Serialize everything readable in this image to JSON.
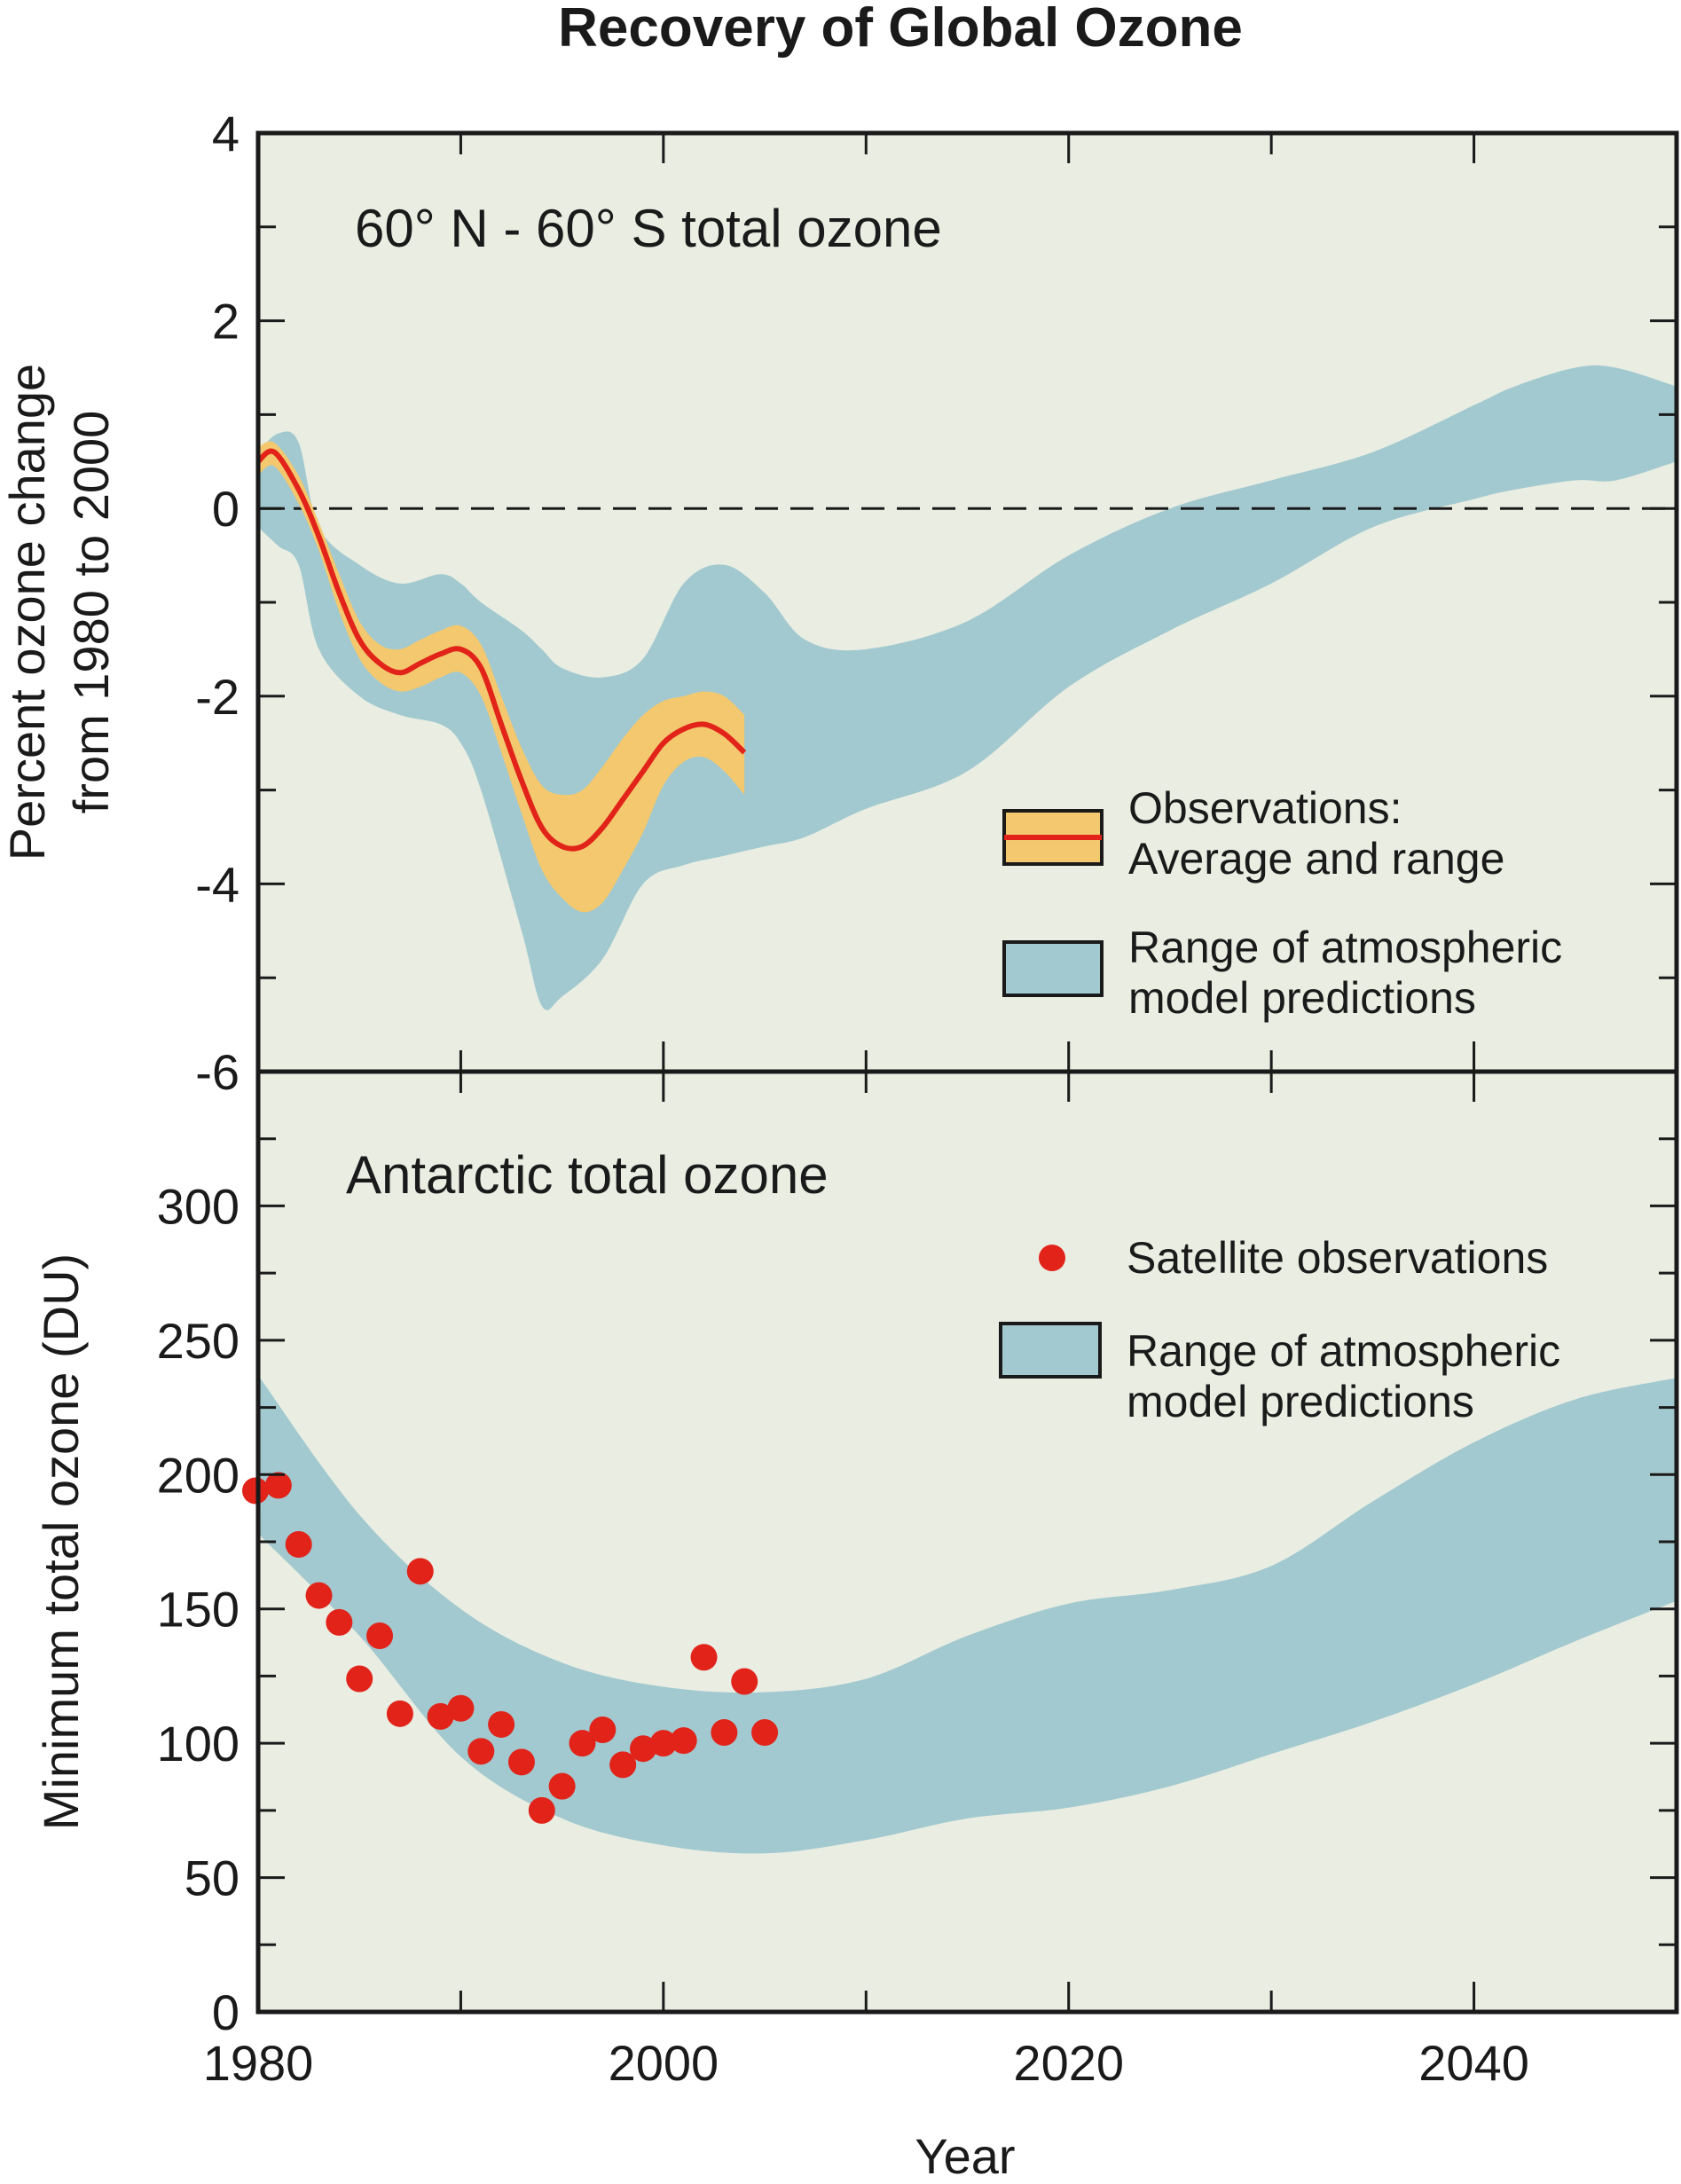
{
  "title": "Recovery of Global Ozone",
  "xlabel": "Year",
  "colors": {
    "background": "#e9ede2",
    "model_band": "#a2c9cf",
    "obs_band": "#f3c86e",
    "obs_line": "#e2231a",
    "points": "#e2231a",
    "axis": "#1a1a1a"
  },
  "chart_data": [
    {
      "type": "area",
      "panel": "top",
      "title": "60° N - 60° S total ozone",
      "xlabel": "",
      "ylabel_lines": [
        "Percent ozone change",
        "from 1980 to 2000"
      ],
      "xlim": [
        1980,
        2050
      ],
      "ylim": [
        -6,
        4
      ],
      "yticks": [
        4,
        2,
        0,
        -2,
        -4,
        -6
      ],
      "reference_line": 0,
      "legend": {
        "placement": "lower-right",
        "obs_label_lines": [
          "Observations:",
          "Average and range"
        ],
        "model_label_lines": [
          "Range of atmospheric",
          "model predictions"
        ]
      },
      "model_range": {
        "name": "Range of atmospheric model predictions",
        "x": [
          1980,
          1981,
          1982,
          1983,
          1985,
          1987,
          1989,
          1990,
          1991,
          1993,
          1994,
          1995,
          1997,
          1999,
          2001,
          2003,
          2005,
          2007,
          2010,
          2015,
          2020,
          2025,
          2030,
          2035,
          2040,
          2042,
          2045,
          2047,
          2050
        ],
        "upper": [
          0.6,
          0.8,
          0.7,
          -0.2,
          -0.6,
          -0.8,
          -0.7,
          -0.8,
          -1.0,
          -1.3,
          -1.5,
          -1.7,
          -1.8,
          -1.6,
          -0.8,
          -0.6,
          -0.9,
          -1.4,
          -1.5,
          -1.2,
          -0.5,
          0.0,
          0.3,
          0.6,
          1.1,
          1.3,
          1.5,
          1.5,
          1.3
        ],
        "lower": [
          -0.2,
          -0.4,
          -0.6,
          -1.5,
          -2.0,
          -2.2,
          -2.3,
          -2.5,
          -3.0,
          -4.5,
          -5.3,
          -5.2,
          -4.8,
          -4.0,
          -3.8,
          -3.7,
          -3.6,
          -3.5,
          -3.2,
          -2.8,
          -1.9,
          -1.3,
          -0.8,
          -0.2,
          0.1,
          0.2,
          0.3,
          0.3,
          0.5
        ]
      },
      "observations": {
        "name": "Observations: Average and range",
        "x": [
          1980,
          1980.8,
          1982,
          1983,
          1984,
          1985,
          1986,
          1987,
          1988,
          1989,
          1990,
          1991,
          1992,
          1993,
          1994,
          1995,
          1996,
          1997,
          1998,
          1999,
          2000,
          2001,
          2002,
          2003,
          2004
        ],
        "average": [
          0.5,
          0.6,
          0.2,
          -0.3,
          -0.9,
          -1.4,
          -1.65,
          -1.75,
          -1.65,
          -1.55,
          -1.5,
          -1.7,
          -2.3,
          -2.9,
          -3.4,
          -3.6,
          -3.6,
          -3.4,
          -3.1,
          -2.8,
          -2.5,
          -2.35,
          -2.3,
          -2.4,
          -2.6
        ],
        "upper": [
          0.65,
          0.7,
          0.35,
          -0.15,
          -0.7,
          -1.2,
          -1.45,
          -1.5,
          -1.4,
          -1.3,
          -1.25,
          -1.45,
          -2.0,
          -2.55,
          -2.95,
          -3.05,
          -3.0,
          -2.75,
          -2.45,
          -2.2,
          -2.05,
          -2.0,
          -1.95,
          -2.0,
          -2.2
        ],
        "lower": [
          0.35,
          0.45,
          0.05,
          -0.45,
          -1.1,
          -1.6,
          -1.85,
          -1.95,
          -1.9,
          -1.8,
          -1.75,
          -2.0,
          -2.6,
          -3.25,
          -3.85,
          -4.15,
          -4.3,
          -4.2,
          -3.85,
          -3.45,
          -2.95,
          -2.7,
          -2.65,
          -2.8,
          -3.05
        ]
      }
    },
    {
      "type": "scatter",
      "panel": "bottom",
      "title": "Antarctic total ozone",
      "xlabel": "Year",
      "ylabel": "Minimum total ozone (DU)",
      "xlim": [
        1980,
        2050
      ],
      "ylim": [
        0,
        350
      ],
      "xticks": [
        1980,
        2000,
        2020,
        2040
      ],
      "yticks": [
        300,
        250,
        200,
        150,
        100,
        50,
        0
      ],
      "legend": {
        "placement": "top-right",
        "points_label": "Satellite observations",
        "model_label_lines": [
          "Range of atmospheric",
          "model predictions"
        ]
      },
      "model_range": {
        "name": "Range of atmospheric model predictions",
        "x": [
          1980,
          1985,
          1990,
          1995,
          2000,
          2005,
          2010,
          2015,
          2020,
          2025,
          2030,
          2035,
          2040,
          2045,
          2050
        ],
        "upper": [
          237,
          185,
          150,
          130,
          121,
          119,
          124,
          140,
          152,
          157,
          166,
          190,
          212,
          228,
          236
        ],
        "lower": [
          178,
          140,
          95,
          72,
          62,
          59,
          64,
          72,
          76,
          84,
          96,
          108,
          122,
          138,
          153
        ]
      },
      "observations": {
        "name": "Satellite observations",
        "x": [
          1980,
          1981,
          1982,
          1983,
          1984,
          1985,
          1986,
          1987,
          1988,
          1989,
          1990,
          1991,
          1992,
          1993,
          1994,
          1995,
          1996,
          1997,
          1998,
          1999,
          2000,
          2001,
          2002,
          2003,
          2004,
          2005
        ],
        "values": [
          194,
          196,
          174,
          155,
          145,
          124,
          140,
          111,
          164,
          110,
          113,
          97,
          107,
          93,
          75,
          84,
          100,
          105,
          92,
          98,
          100,
          101,
          132,
          104,
          123,
          104
        ]
      }
    }
  ]
}
